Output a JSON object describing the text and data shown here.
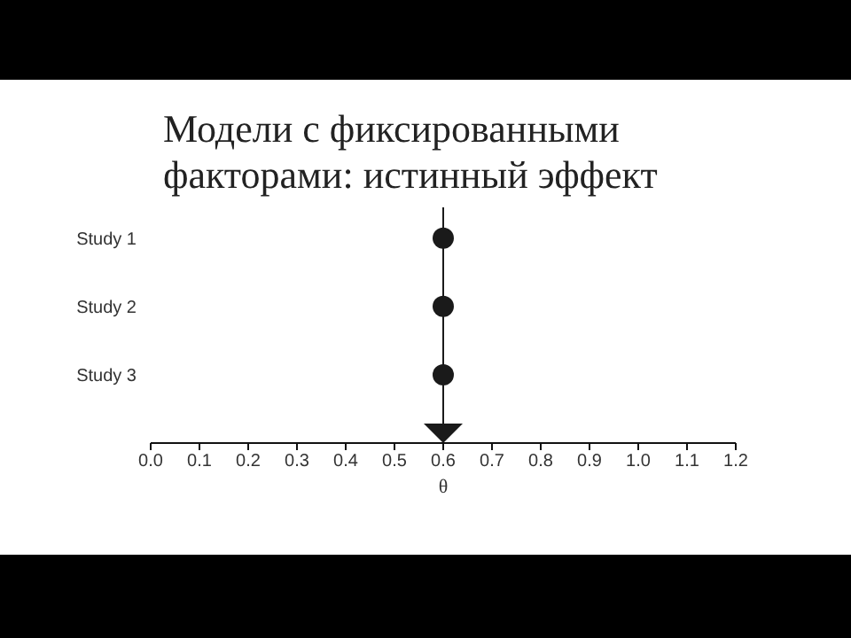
{
  "chart_data": {
    "type": "scatter",
    "orientation": "horizontal",
    "title": "Модели с фиксированными факторами: истинный эффект",
    "xlabel": "θ",
    "categories": [
      "Study 1",
      "Study 2",
      "Study 3",
      null
    ],
    "series": [
      {
        "color": "#1a1a1a",
        "marker": "circle",
        "values": [
          0.6,
          0.6,
          0.6,
          null
        ]
      },
      {
        "color": "#1a1a1a",
        "marker": "triangle",
        "values": [
          null,
          null,
          null,
          0.6
        ]
      }
    ],
    "xlim": [
      0,
      1.2
    ],
    "xticks": [
      {
        "value": 0,
        "label": "0.0"
      },
      0.1,
      0.2,
      0.3,
      0.4,
      0.5,
      0.6,
      0.7,
      0.8,
      0.9,
      {
        "value": 1,
        "label": "1.0"
      },
      1.1,
      1.2
    ],
    "ref_lines": [
      {
        "axis": "x",
        "value": 0.6,
        "color": "#1a1a1a"
      }
    ],
    "grid": false,
    "legend": false
  }
}
